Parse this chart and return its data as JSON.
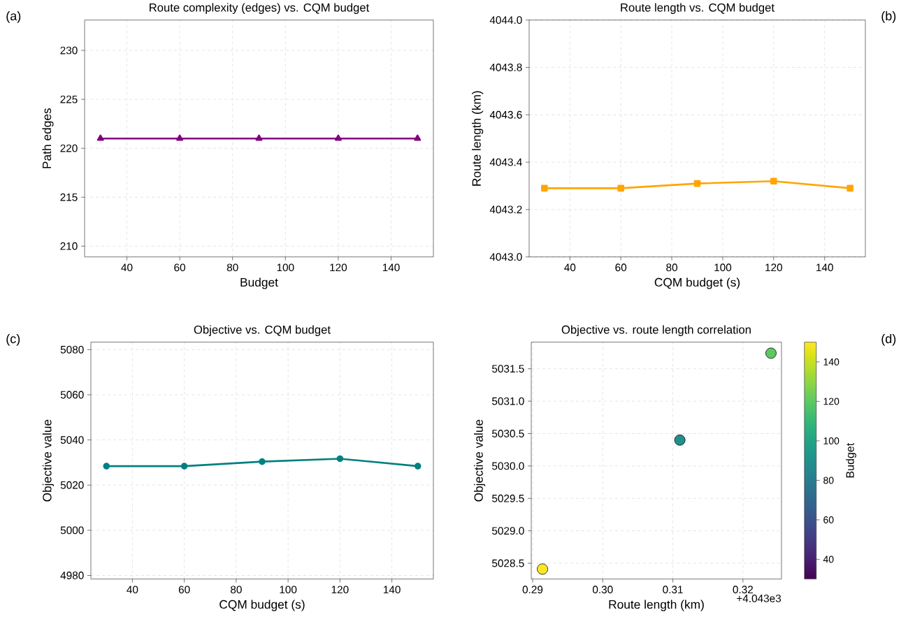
{
  "chart_data": [
    {
      "type": "line",
      "title": "Route complexity (edges) vs. CQM budget",
      "xlabel": "Budget",
      "ylabel": "Path edges",
      "x": [
        30,
        60,
        90,
        120,
        150
      ],
      "values": [
        221,
        221,
        221,
        221,
        221
      ],
      "color": "#800080",
      "marker": "triangle",
      "grid": true,
      "xlim": [
        24,
        156
      ],
      "ylim": [
        208.9,
        233.1
      ],
      "xticks": [
        40,
        60,
        80,
        100,
        120,
        140
      ],
      "yticks": [
        210,
        215,
        220,
        225,
        230
      ],
      "annotations": [
        "(a)"
      ]
    },
    {
      "type": "line",
      "title": "Route length vs. CQM budget",
      "xlabel": "CQM budget (s)",
      "ylabel": "Route length (km)",
      "x": [
        30,
        60,
        90,
        120,
        150
      ],
      "values": [
        4043.29,
        4043.29,
        4043.31,
        4043.32,
        4043.29
      ],
      "color": "#ffa500",
      "marker": "square",
      "grid": true,
      "xlim": [
        24,
        156
      ],
      "ylim": [
        4043.0,
        4044.0
      ],
      "xticks": [
        40,
        60,
        80,
        100,
        120,
        140
      ],
      "yticks": [
        {
          "value": 4043.0,
          "label": "4043.0"
        },
        {
          "value": 4043.2,
          "label": "4043.2"
        },
        {
          "value": 4043.4,
          "label": "4043.4"
        },
        {
          "value": 4043.6,
          "label": "4043.6"
        },
        {
          "value": 4043.8,
          "label": "4043.8"
        },
        {
          "value": 4044.0,
          "label": "4044.0"
        }
      ],
      "annotations": [
        "(b)"
      ]
    },
    {
      "type": "line",
      "title": "Objective vs. CQM budget",
      "xlabel": "CQM budget (s)",
      "ylabel": "Objective value",
      "x": [
        30,
        60,
        90,
        120,
        150
      ],
      "values": [
        5028.4,
        5028.4,
        5030.4,
        5031.7,
        5028.4
      ],
      "color": "#008080",
      "marker": "circle",
      "grid": true,
      "xlim": [
        24,
        156
      ],
      "ylim": [
        4978.4,
        5083.3
      ],
      "xticks": [
        40,
        60,
        80,
        100,
        120,
        140
      ],
      "yticks": [
        4980,
        5000,
        5020,
        5040,
        5060,
        5080
      ],
      "annotations": [
        "(c)"
      ]
    },
    {
      "type": "scatter",
      "title": "Objective vs. route length correlation",
      "xlabel": "Route length (km)",
      "ylabel": "Objective value",
      "x": [
        0.2914,
        0.311,
        0.324
      ],
      "values": [
        5028.41,
        5030.4,
        5031.74
      ],
      "cvalues": [
        150,
        90,
        120
      ],
      "clabel": "Budget",
      "clim": [
        30,
        150
      ],
      "cticks": [
        40,
        60,
        80,
        100,
        120,
        140
      ],
      "marker": "circle",
      "grid": true,
      "xlim": [
        0.2898,
        0.3255
      ],
      "ylim": [
        5028.256,
        5031.91
      ],
      "xticks": [
        0.29,
        {
          "value": 0.3,
          "label": "0.30"
        },
        0.31,
        0.32
      ],
      "yticks": [
        {
          "value": 5028.5,
          "label": "5028.5"
        },
        {
          "value": 5029.0,
          "label": "5029.0"
        },
        {
          "value": 5029.5,
          "label": "5029.5"
        },
        {
          "value": 5030.0,
          "label": "5030.0"
        },
        {
          "value": 5030.5,
          "label": "5030.5"
        },
        {
          "value": 5031.0,
          "label": "5031.0"
        },
        {
          "value": 5031.5,
          "label": "5031.5"
        }
      ],
      "annotations": [
        "(d)",
        "+4.043e3"
      ]
    }
  ]
}
